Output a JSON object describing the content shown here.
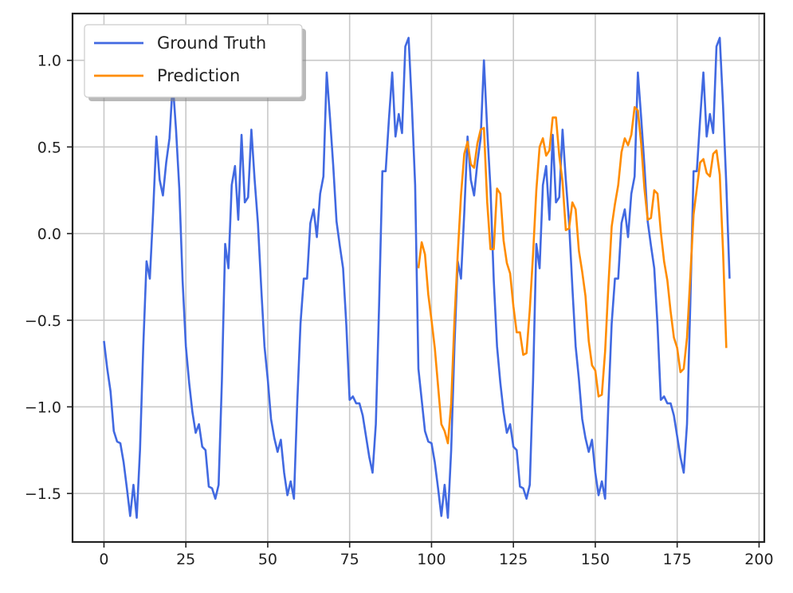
{
  "chart_data": {
    "type": "line",
    "title": "",
    "xlabel": "",
    "ylabel": "",
    "xlim": [
      -9.6,
      201.6
    ],
    "ylim": [
      -1.78,
      1.27
    ],
    "grid": true,
    "legend_position": "top-left",
    "x_ticks": [
      0,
      25,
      50,
      75,
      100,
      125,
      150,
      175,
      200
    ],
    "x_tick_labels": [
      "0",
      "25",
      "50",
      "75",
      "100",
      "125",
      "150",
      "175",
      "200"
    ],
    "y_ticks": [
      1.0,
      0.5,
      0.0,
      -0.5,
      -1.0,
      -1.5
    ],
    "y_tick_labels": [
      "1.0",
      "0.5",
      "0.0",
      "−0.5",
      "−1.0",
      "−1.5"
    ],
    "series": [
      {
        "name": "Ground Truth",
        "color": "#4169E1",
        "x_start": 0,
        "values": [
          -0.62,
          -0.78,
          -0.91,
          -1.14,
          -1.2,
          -1.21,
          -1.32,
          -1.47,
          -1.63,
          -1.45,
          -1.64,
          -1.25,
          -0.65,
          -0.16,
          -0.26,
          0.12,
          0.56,
          0.31,
          0.22,
          0.41,
          0.55,
          0.87,
          0.6,
          0.26,
          -0.27,
          -0.65,
          -0.86,
          -1.03,
          -1.15,
          -1.1,
          -1.23,
          -1.25,
          -1.46,
          -1.47,
          -1.53,
          -1.45,
          -0.85,
          -0.06,
          -0.2,
          0.28,
          0.39,
          0.08,
          0.57,
          0.18,
          0.21,
          0.6,
          0.31,
          0.06,
          -0.31,
          -0.65,
          -0.84,
          -1.07,
          -1.18,
          -1.26,
          -1.19,
          -1.38,
          -1.51,
          -1.43,
          -1.53,
          -0.98,
          -0.52,
          -0.26,
          -0.26,
          0.06,
          0.14,
          -0.02,
          0.23,
          0.33,
          0.93,
          0.67,
          0.39,
          0.07,
          -0.07,
          -0.2,
          -0.53,
          -0.96,
          -0.94,
          -0.98,
          -0.98,
          -1.05,
          -1.17,
          -1.29,
          -1.38,
          -1.1,
          -0.41,
          0.36,
          0.36,
          0.66,
          0.93,
          0.56,
          0.69,
          0.58,
          1.08,
          1.13,
          0.74,
          0.28,
          -0.78,
          -0.96,
          -1.14,
          -1.2,
          -1.21,
          -1.32,
          -1.47,
          -1.63,
          -1.45,
          -1.64,
          -1.25,
          -0.65,
          -0.16,
          -0.26,
          0.12,
          0.56,
          0.31,
          0.22,
          0.41,
          0.55,
          1.0,
          0.6,
          0.26,
          -0.27,
          -0.65,
          -0.86,
          -1.03,
          -1.15,
          -1.1,
          -1.23,
          -1.25,
          -1.46,
          -1.47,
          -1.53,
          -1.45,
          -0.85,
          -0.06,
          -0.2,
          0.28,
          0.39,
          0.08,
          0.57,
          0.18,
          0.21,
          0.6,
          0.31,
          0.06,
          -0.31,
          -0.65,
          -0.84,
          -1.07,
          -1.18,
          -1.26,
          -1.19,
          -1.38,
          -1.51,
          -1.43,
          -1.53,
          -0.98,
          -0.52,
          -0.26,
          -0.26,
          0.06,
          0.14,
          -0.02,
          0.23,
          0.33,
          0.93,
          0.67,
          0.39,
          0.07,
          -0.07,
          -0.2,
          -0.53,
          -0.96,
          -0.94,
          -0.98,
          -0.98,
          -1.05,
          -1.17,
          -1.29,
          -1.38,
          -1.1,
          -0.41,
          0.36,
          0.36,
          0.66,
          0.93,
          0.56,
          0.69,
          0.58,
          1.08,
          1.13,
          0.74,
          0.28,
          -0.26
        ]
      },
      {
        "name": "Prediction",
        "color": "#FF8C00",
        "x_start": 96,
        "values": [
          -0.2,
          -0.05,
          -0.12,
          -0.35,
          -0.5,
          -0.66,
          -0.88,
          -1.1,
          -1.14,
          -1.21,
          -0.98,
          -0.5,
          -0.12,
          0.22,
          0.46,
          0.53,
          0.4,
          0.38,
          0.52,
          0.6,
          0.61,
          0.18,
          -0.09,
          -0.09,
          0.26,
          0.23,
          -0.04,
          -0.17,
          -0.23,
          -0.42,
          -0.57,
          -0.57,
          -0.7,
          -0.69,
          -0.44,
          -0.12,
          0.25,
          0.5,
          0.55,
          0.45,
          0.48,
          0.67,
          0.67,
          0.45,
          0.3,
          0.02,
          0.03,
          0.18,
          0.14,
          -0.1,
          -0.22,
          -0.36,
          -0.62,
          -0.76,
          -0.79,
          -0.94,
          -0.93,
          -0.68,
          -0.3,
          0.04,
          0.17,
          0.28,
          0.47,
          0.55,
          0.51,
          0.57,
          0.73,
          0.71,
          0.52,
          0.26,
          0.08,
          0.09,
          0.25,
          0.23,
          0.01,
          -0.16,
          -0.27,
          -0.45,
          -0.6,
          -0.66,
          -0.8,
          -0.78,
          -0.6,
          -0.25,
          0.11,
          0.26,
          0.41,
          0.43,
          0.35,
          0.33,
          0.46,
          0.48,
          0.34,
          -0.1,
          -0.66
        ]
      }
    ]
  }
}
